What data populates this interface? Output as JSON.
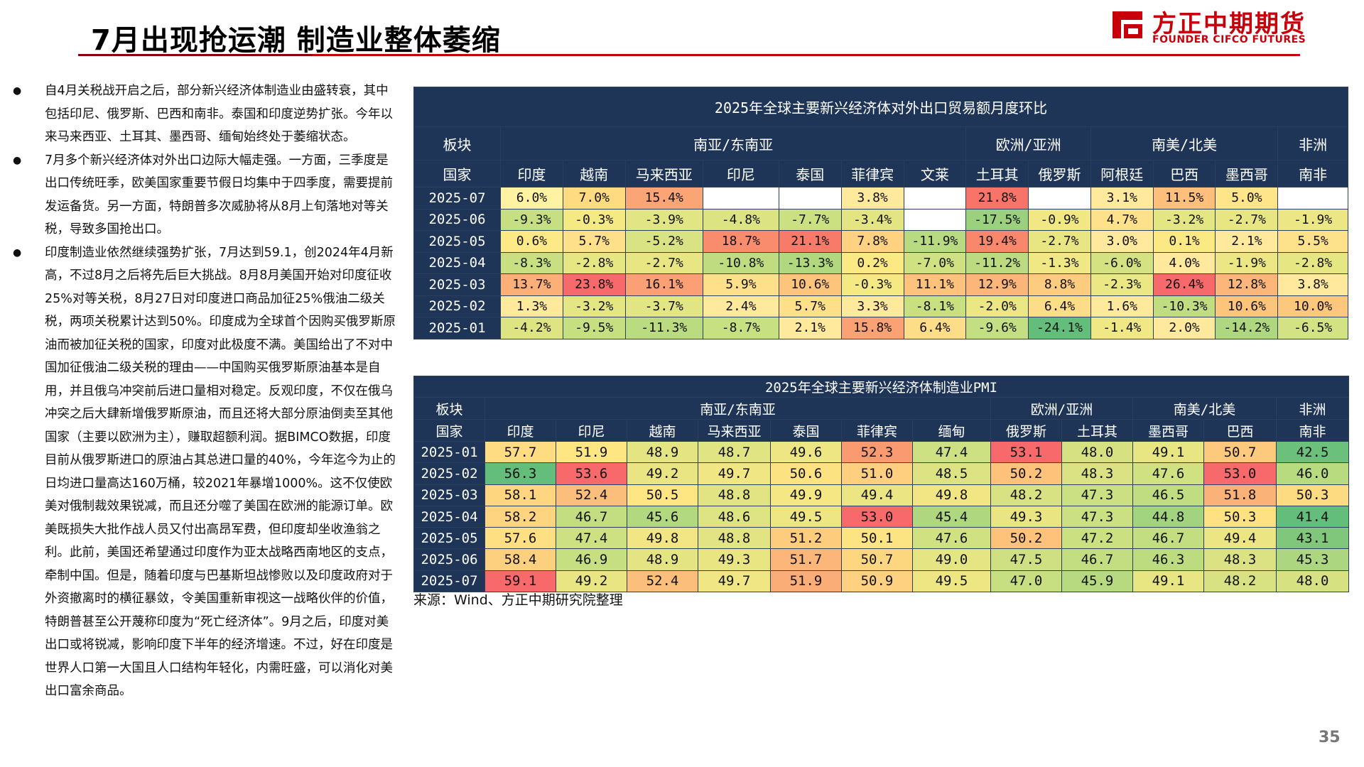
{
  "header": {
    "title": "7月出现抢运潮  制造业整体萎缩",
    "logo_cn": "方正中期期货",
    "logo_en": "FOUNDER CIFCO FUTURES"
  },
  "bullets": [
    "自4月关税战开启之后，部分新兴经济体制造业由盛转衰，其中包括印尼、俄罗斯、巴西和南非。泰国和印度逆势扩张。今年以来马来西亚、土耳其、墨西哥、缅甸始终处于萎缩状态。",
    "7月多个新兴经济体对外出口边际大幅走强。一方面，三季度是出口传统旺季，欧美国家重要节假日均集中于四季度，需要提前发运备货。另一方面，特朗普多次威胁将从8月上旬落地对等关税，导致多国抢出口。",
    "印度制造业依然继续强势扩张，7月达到59.1，创2024年4月新高，不过8月之后将先后巨大挑战。8月8月美国开始对印度征收25%对等关税，8月27日对印度进口商品加征25%俄油二级关税，两项关税累计达到50%。印度成为全球首个因购买俄罗斯原油而被加征关税的国家，印度对此极度不满。美国给出了不对中国加征俄油二级关税的理由——中国购买俄罗斯原油基本是自用，并且俄乌冲突前后进口量相对稳定。反观印度，不仅在俄乌冲突之后大肆新增俄罗斯原油，而且还将大部分原油倒卖至其他国家（主要以欧洲为主），赚取超额利润。据BIMCO数据，印度目前从俄罗斯进口的原油占其总进口量的40%，今年迄今为止的日均进口量高达160万桶，较2021年暴增1000%。这不仅使欧美对俄制裁效果锐减，而且还分噬了美国在欧洲的能源订单。欧美既损失大批作战人员又付出高昂军费，但印度却坐收渔翁之利。此前，美国还希望通过印度作为亚太战略西南地区的支点，牵制中国。但是，随着印度与巴基斯坦战惨败以及印度政府对于外资撤离时的横征暴敛，令美国重新审视这一战略伙伴的价值，特朗普甚至公开蔑称印度为“死亡经济体”。9月之后，印度对美出口或将锐减，影响印度下半年的经济增速。不过，好在印度是世界人口第一大国且人口结构年轻化，内需旺盛，可以消化对美出口富余商品。"
  ],
  "table1": {
    "title": "2025年全球主要新兴经济体对外出口贸易额月度环比",
    "sector_label": "板块",
    "country_label": "国家",
    "sectors": [
      {
        "name": "南亚/东南亚",
        "span": 7
      },
      {
        "name": "欧洲/亚洲",
        "span": 2
      },
      {
        "name": "南美/北美",
        "span": 3
      },
      {
        "name": "非洲",
        "span": 1
      }
    ],
    "countries": [
      "印度",
      "越南",
      "马来西亚",
      "印尼",
      "泰国",
      "菲律宾",
      "文莱",
      "土耳其",
      "俄罗斯",
      "阿根廷",
      "巴西",
      "墨西哥",
      "南非"
    ],
    "rows": [
      {
        "label": "2025-07",
        "cells": [
          {
            "t": "6.0%",
            "c": "#fff2a3"
          },
          {
            "t": "7.0%",
            "c": "#fedb81"
          },
          {
            "t": "15.4%",
            "c": "#fba475"
          },
          {
            "t": "",
            "c": "#ffffff"
          },
          {
            "t": "",
            "c": "#ffffff"
          },
          {
            "t": "3.8%",
            "c": "#fee99d"
          },
          {
            "t": "",
            "c": "#ffffff"
          },
          {
            "t": "21.8%",
            "c": "#f87468"
          },
          {
            "t": "",
            "c": "#ffffff"
          },
          {
            "t": "3.1%",
            "c": "#fee99d"
          },
          {
            "t": "11.5%",
            "c": "#fdbf7b"
          },
          {
            "t": "5.0%",
            "c": "#fee58a"
          },
          {
            "t": "",
            "c": "#ffffff"
          }
        ]
      },
      {
        "label": "2025-06",
        "cells": [
          {
            "t": "-9.3%",
            "c": "#c6df82"
          },
          {
            "t": "-0.3%",
            "c": "#f5e983"
          },
          {
            "t": "-3.9%",
            "c": "#e1e583"
          },
          {
            "t": "-4.8%",
            "c": "#dce383"
          },
          {
            "t": "-7.7%",
            "c": "#cae081"
          },
          {
            "t": "-3.4%",
            "c": "#e3e583"
          },
          {
            "t": "",
            "c": "#ffffff"
          },
          {
            "t": "-17.5%",
            "c": "#9bd07e"
          },
          {
            "t": "-0.9%",
            "c": "#f1e883"
          },
          {
            "t": "4.7%",
            "c": "#fee18b"
          },
          {
            "t": "-3.2%",
            "c": "#e4e683"
          },
          {
            "t": "-2.7%",
            "c": "#e7e683"
          },
          {
            "t": "-1.9%",
            "c": "#ece784"
          }
        ]
      },
      {
        "label": "2025-05",
        "cells": [
          {
            "t": "0.6%",
            "c": "#fdea86"
          },
          {
            "t": "5.7%",
            "c": "#fee08a"
          },
          {
            "t": "-5.2%",
            "c": "#dae383"
          },
          {
            "t": "18.7%",
            "c": "#f98c6d"
          },
          {
            "t": "21.1%",
            "c": "#f87b6a"
          },
          {
            "t": "7.8%",
            "c": "#fed280"
          },
          {
            "t": "-11.9%",
            "c": "#b8da80"
          },
          {
            "t": "19.4%",
            "c": "#f8876c"
          },
          {
            "t": "-2.7%",
            "c": "#e7e683"
          },
          {
            "t": "3.0%",
            "c": "#fee99d"
          },
          {
            "t": "0.1%",
            "c": "#fbea84"
          },
          {
            "t": "2.1%",
            "c": "#fee99d"
          },
          {
            "t": "5.5%",
            "c": "#fee18b"
          }
        ]
      },
      {
        "label": "2025-04",
        "cells": [
          {
            "t": "-8.3%",
            "c": "#c8e081"
          },
          {
            "t": "-2.8%",
            "c": "#e6e683"
          },
          {
            "t": "-2.7%",
            "c": "#e7e683"
          },
          {
            "t": "-10.8%",
            "c": "#bfdc80"
          },
          {
            "t": "-13.3%",
            "c": "#b1d87f"
          },
          {
            "t": "0.2%",
            "c": "#fbea84"
          },
          {
            "t": "-7.0%",
            "c": "#d0e182"
          },
          {
            "t": "-11.2%",
            "c": "#bcdb80"
          },
          {
            "t": "-1.3%",
            "c": "#efe884"
          },
          {
            "t": "-6.0%",
            "c": "#d5e282"
          },
          {
            "t": "4.0%",
            "c": "#fee99d"
          },
          {
            "t": "-1.9%",
            "c": "#ece784"
          },
          {
            "t": "-2.8%",
            "c": "#e6e683"
          }
        ]
      },
      {
        "label": "2025-03",
        "cells": [
          {
            "t": "13.7%",
            "c": "#fcb078"
          },
          {
            "t": "23.8%",
            "c": "#f8696b"
          },
          {
            "t": "16.1%",
            "c": "#fba074"
          },
          {
            "t": "5.9%",
            "c": "#fee08a"
          },
          {
            "t": "10.6%",
            "c": "#fdc47c"
          },
          {
            "t": "-0.3%",
            "c": "#f5e983"
          },
          {
            "t": "11.1%",
            "c": "#fdc27b"
          },
          {
            "t": "12.9%",
            "c": "#fcb679"
          },
          {
            "t": "8.8%",
            "c": "#fecc7f"
          },
          {
            "t": "-2.3%",
            "c": "#eae784"
          },
          {
            "t": "26.4%",
            "c": "#f8696b"
          },
          {
            "t": "12.8%",
            "c": "#fcb679"
          },
          {
            "t": "3.8%",
            "c": "#fee99d"
          }
        ]
      },
      {
        "label": "2025-02",
        "cells": [
          {
            "t": "1.3%",
            "c": "#fee99d"
          },
          {
            "t": "-3.2%",
            "c": "#e4e683"
          },
          {
            "t": "-3.7%",
            "c": "#e1e583"
          },
          {
            "t": "2.4%",
            "c": "#fee99d"
          },
          {
            "t": "5.7%",
            "c": "#fee08a"
          },
          {
            "t": "3.3%",
            "c": "#fee99d"
          },
          {
            "t": "-8.1%",
            "c": "#c9e081"
          },
          {
            "t": "-2.0%",
            "c": "#ebe784"
          },
          {
            "t": "6.4%",
            "c": "#fedd88"
          },
          {
            "t": "1.6%",
            "c": "#fee99d"
          },
          {
            "t": "-10.3%",
            "c": "#c1dd81"
          },
          {
            "t": "10.6%",
            "c": "#fdc47c"
          },
          {
            "t": "10.0%",
            "c": "#fdc77d"
          }
        ]
      },
      {
        "label": "2025-01",
        "cells": [
          {
            "t": "-4.2%",
            "c": "#dfe483"
          },
          {
            "t": "-9.5%",
            "c": "#c5df81"
          },
          {
            "t": "-11.3%",
            "c": "#bbdb80"
          },
          {
            "t": "-8.7%",
            "c": "#c7e081"
          },
          {
            "t": "2.1%",
            "c": "#fee99d"
          },
          {
            "t": "15.8%",
            "c": "#fba274"
          },
          {
            "t": "6.4%",
            "c": "#fedd88"
          },
          {
            "t": "-9.6%",
            "c": "#c4df81"
          },
          {
            "t": "-24.1%",
            "c": "#63be7b"
          },
          {
            "t": "-1.4%",
            "c": "#efe884"
          },
          {
            "t": "2.0%",
            "c": "#fee99d"
          },
          {
            "t": "-14.2%",
            "c": "#aed77f"
          },
          {
            "t": "-6.5%",
            "c": "#d3e282"
          }
        ]
      }
    ]
  },
  "table2": {
    "title": "2025年全球主要新兴经济体制造业PMI",
    "sector_label": "板块",
    "country_label": "国家",
    "sectors": [
      {
        "name": "南亚/东南亚",
        "span": 7
      },
      {
        "name": "欧洲/亚洲",
        "span": 2
      },
      {
        "name": "南美/北美",
        "span": 2
      },
      {
        "name": "非洲",
        "span": 1
      }
    ],
    "countries": [
      "印度",
      "印尼",
      "越南",
      "马来西亚",
      "泰国",
      "菲律宾",
      "缅甸",
      "俄罗斯",
      "土耳其",
      "墨西哥",
      "巴西",
      "南非"
    ],
    "rows": [
      {
        "label": "2025-01",
        "cells": [
          {
            "t": "57.7",
            "c": "#fedc81"
          },
          {
            "t": "51.9",
            "c": "#fee782"
          },
          {
            "t": "48.9",
            "c": "#e4e483"
          },
          {
            "t": "48.7",
            "c": "#e1e483"
          },
          {
            "t": "49.6",
            "c": "#eee683"
          },
          {
            "t": "52.3",
            "c": "#f99a70"
          },
          {
            "t": "47.4",
            "c": "#cde082"
          },
          {
            "t": "53.1",
            "c": "#f8696b"
          },
          {
            "t": "48.0",
            "c": "#d6e282"
          },
          {
            "t": "49.1",
            "c": "#e8e583"
          },
          {
            "t": "50.7",
            "c": "#fdca7d"
          },
          {
            "t": "42.5",
            "c": "#6bc17c"
          }
        ]
      },
      {
        "label": "2025-02",
        "cells": [
          {
            "t": "56.3",
            "c": "#63be7b"
          },
          {
            "t": "53.6",
            "c": "#f8696b"
          },
          {
            "t": "49.2",
            "c": "#e9e583"
          },
          {
            "t": "49.7",
            "c": "#f0e684"
          },
          {
            "t": "50.6",
            "c": "#fde282"
          },
          {
            "t": "51.0",
            "c": "#fdcf7e"
          },
          {
            "t": "48.5",
            "c": "#dde383"
          },
          {
            "t": "50.2",
            "c": "#fec27b"
          },
          {
            "t": "48.3",
            "c": "#dae283"
          },
          {
            "t": "47.6",
            "c": "#d0e182"
          },
          {
            "t": "53.0",
            "c": "#f8696b"
          },
          {
            "t": "46.0",
            "c": "#b9db80"
          }
        ]
      },
      {
        "label": "2025-03",
        "cells": [
          {
            "t": "58.1",
            "c": "#fed680"
          },
          {
            "t": "52.4",
            "c": "#fcbf7b"
          },
          {
            "t": "50.5",
            "c": "#fee783"
          },
          {
            "t": "48.8",
            "c": "#e2e483"
          },
          {
            "t": "49.9",
            "c": "#f4e784"
          },
          {
            "t": "49.4",
            "c": "#ebe683"
          },
          {
            "t": "49.8",
            "c": "#f2e684"
          },
          {
            "t": "48.2",
            "c": "#d8e282"
          },
          {
            "t": "47.3",
            "c": "#cbe082"
          },
          {
            "t": "46.5",
            "c": "#c0dd81"
          },
          {
            "t": "51.8",
            "c": "#fbb278"
          },
          {
            "t": "50.3",
            "c": "#fddb81"
          }
        ]
      },
      {
        "label": "2025-04",
        "cells": [
          {
            "t": "58.2",
            "c": "#fed480"
          },
          {
            "t": "46.7",
            "c": "#c3de81"
          },
          {
            "t": "45.6",
            "c": "#b3d980"
          },
          {
            "t": "48.6",
            "c": "#dee383"
          },
          {
            "t": "49.5",
            "c": "#ede683"
          },
          {
            "t": "53.0",
            "c": "#f8696b"
          },
          {
            "t": "45.4",
            "c": "#aed77f"
          },
          {
            "t": "49.3",
            "c": "#eae583"
          },
          {
            "t": "47.3",
            "c": "#cbe082"
          },
          {
            "t": "44.8",
            "c": "#a2d37e"
          },
          {
            "t": "50.3",
            "c": "#fde182"
          },
          {
            "t": "41.4",
            "c": "#63be7b"
          }
        ]
      },
      {
        "label": "2025-05",
        "cells": [
          {
            "t": "57.6",
            "c": "#fee082"
          },
          {
            "t": "47.4",
            "c": "#cde082"
          },
          {
            "t": "49.8",
            "c": "#f2e684"
          },
          {
            "t": "48.8",
            "c": "#e2e483"
          },
          {
            "t": "51.2",
            "c": "#fdcc7d"
          },
          {
            "t": "50.1",
            "c": "#fde482"
          },
          {
            "t": "47.6",
            "c": "#d0e182"
          },
          {
            "t": "50.2",
            "c": "#fec27b"
          },
          {
            "t": "47.2",
            "c": "#cae081"
          },
          {
            "t": "46.7",
            "c": "#c3de81"
          },
          {
            "t": "49.4",
            "c": "#ebe683"
          },
          {
            "t": "43.1",
            "c": "#80c77c"
          }
        ]
      },
      {
        "label": "2025-06",
        "cells": [
          {
            "t": "58.4",
            "c": "#fdd07f"
          },
          {
            "t": "46.9",
            "c": "#c6df81"
          },
          {
            "t": "48.9",
            "c": "#e4e483"
          },
          {
            "t": "49.3",
            "c": "#eae583"
          },
          {
            "t": "51.7",
            "c": "#fcb679"
          },
          {
            "t": "50.7",
            "c": "#fdd780"
          },
          {
            "t": "49.0",
            "c": "#e6e583"
          },
          {
            "t": "47.5",
            "c": "#cee082"
          },
          {
            "t": "46.7",
            "c": "#c3de81"
          },
          {
            "t": "46.3",
            "c": "#bddc80"
          },
          {
            "t": "48.3",
            "c": "#dae283"
          },
          {
            "t": "45.3",
            "c": "#acd67f"
          }
        ]
      },
      {
        "label": "2025-07",
        "cells": [
          {
            "t": "59.1",
            "c": "#f8696b"
          },
          {
            "t": "49.2",
            "c": "#e9e583"
          },
          {
            "t": "52.4",
            "c": "#fcbf7b"
          },
          {
            "t": "49.7",
            "c": "#f0e684"
          },
          {
            "t": "51.9",
            "c": "#fbad77"
          },
          {
            "t": "50.9",
            "c": "#fdd17f"
          },
          {
            "t": "49.5",
            "c": "#ede683"
          },
          {
            "t": "47.0",
            "c": "#c7df81"
          },
          {
            "t": "45.9",
            "c": "#b7da80"
          },
          {
            "t": "49.1",
            "c": "#e8e583"
          },
          {
            "t": "48.2",
            "c": "#d8e282"
          },
          {
            "t": "48.0",
            "c": "#d6e282"
          }
        ]
      }
    ]
  },
  "source": "来源：Wind、方正中期研究院整理",
  "page_number": "35"
}
